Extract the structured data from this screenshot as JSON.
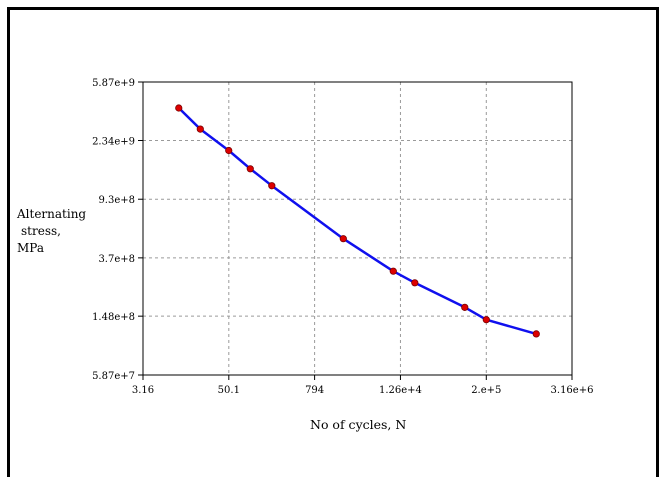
{
  "chart_data": {
    "type": "line",
    "xlabel": "No of cycles, N",
    "ylabel_lines": [
      "Alternating",
      "stress,",
      "MPa"
    ],
    "x_scale": "log",
    "y_scale": "log",
    "xlim": [
      3.16,
      3160000
    ],
    "ylim": [
      58700000,
      5870000000
    ],
    "x_ticks": [
      3.16,
      50.1,
      794,
      12600,
      200000,
      3160000
    ],
    "x_tick_labels": [
      "3.16",
      "50.1",
      "794",
      "1.26e+4",
      "2.e+5",
      "3.16e+6"
    ],
    "y_ticks": [
      58700000,
      148000000,
      370000000,
      930000000,
      2340000000,
      5870000000
    ],
    "y_tick_labels": [
      "5.87e+7",
      "1.48e+8",
      "3.7e+8",
      "9.3e+8",
      "2.34e+9",
      "5.87e+9"
    ],
    "grid": true,
    "series": [
      {
        "line_color": "#1010ee",
        "marker_color": "#dd0000",
        "x": [
          10,
          20,
          50,
          100,
          200,
          2000,
          10000,
          20000,
          100000,
          200000,
          1000000
        ],
        "y": [
          3900000000,
          2800000000,
          2000000000,
          1500000000,
          1150000000,
          500000000,
          300000000,
          250000000,
          170000000,
          140000000,
          112000000
        ]
      }
    ]
  }
}
